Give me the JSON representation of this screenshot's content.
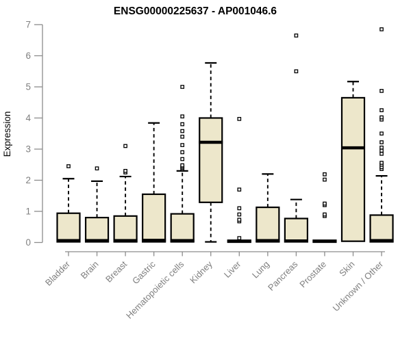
{
  "window": {
    "background": "#ffffff"
  },
  "chart_data": {
    "type": "boxplot",
    "title": "ENSG00000225637 - AP001046.6",
    "ylabel": "Expression",
    "xlabel": "",
    "ylim": [
      0,
      7
    ],
    "yticks": [
      0,
      1,
      2,
      3,
      4,
      5,
      6,
      7
    ],
    "grid": false,
    "legend": false,
    "colors": {
      "box_fill": "#ede7cb",
      "box_stroke": "#000000",
      "median": "#000000",
      "whisker": "#000000",
      "axis": "#8c8c8c",
      "tick_label": "#7f7f7f",
      "title": "#000000"
    },
    "categories": [
      "Bladder",
      "Brain",
      "Breast",
      "Gastric",
      "Hematopoietic cells",
      "Kidney",
      "Liver",
      "Lung",
      "Pancreas",
      "Prostate",
      "Skin",
      "Unknown / Other"
    ],
    "series": [
      {
        "category": "Bladder",
        "whisker_low": 0,
        "q1": 0.02,
        "median": 0.06,
        "q3": 0.94,
        "whisker_high": 2.05,
        "outliers": [
          2.45
        ]
      },
      {
        "category": "Brain",
        "whisker_low": 0,
        "q1": 0.02,
        "median": 0.06,
        "q3": 0.8,
        "whisker_high": 1.97,
        "outliers": [
          2.38
        ]
      },
      {
        "category": "Breast",
        "whisker_low": 0,
        "q1": 0.02,
        "median": 0.06,
        "q3": 0.85,
        "whisker_high": 2.12,
        "outliers": [
          2.25,
          2.3,
          3.1
        ]
      },
      {
        "category": "Gastric",
        "whisker_low": 0,
        "q1": 0.02,
        "median": 0.07,
        "q3": 1.55,
        "whisker_high": 3.84,
        "outliers": []
      },
      {
        "category": "Hematopoietic cells",
        "whisker_low": 0,
        "q1": 0.02,
        "median": 0.06,
        "q3": 0.92,
        "whisker_high": 2.3,
        "outliers": [
          2.36,
          2.4,
          2.44,
          2.48,
          2.68,
          2.9,
          3.13,
          3.4,
          3.58,
          3.8,
          4.05,
          5.0
        ]
      },
      {
        "category": "Kidney",
        "whisker_low": 0.02,
        "q1": 1.29,
        "median": 3.22,
        "q3": 4.0,
        "whisker_high": 5.77,
        "outliers": []
      },
      {
        "category": "Liver",
        "whisker_low": 0,
        "q1": 0.01,
        "median": 0.04,
        "q3": 0.07,
        "whisker_high": 0.07,
        "outliers": [
          0.14,
          0.68,
          0.73,
          0.9,
          1.1,
          1.7,
          3.97
        ]
      },
      {
        "category": "Lung",
        "whisker_low": 0,
        "q1": 0.02,
        "median": 0.06,
        "q3": 1.13,
        "whisker_high": 2.2,
        "outliers": []
      },
      {
        "category": "Pancreas",
        "whisker_low": 0,
        "q1": 0.02,
        "median": 0.05,
        "q3": 0.77,
        "whisker_high": 1.38,
        "outliers": [
          5.5,
          6.65
        ]
      },
      {
        "category": "Prostate",
        "whisker_low": 0,
        "q1": 0.01,
        "median": 0.04,
        "q3": 0.07,
        "whisker_high": 0.07,
        "outliers": [
          0.85,
          0.9,
          1.2,
          1.25,
          2.02,
          2.19
        ]
      },
      {
        "category": "Skin",
        "whisker_low": 0.02,
        "q1": 0.04,
        "median": 3.04,
        "q3": 4.65,
        "whisker_high": 5.17,
        "outliers": []
      },
      {
        "category": "Unknown / Other",
        "whisker_low": 0,
        "q1": 0.02,
        "median": 0.06,
        "q3": 0.88,
        "whisker_high": 2.14,
        "outliers": [
          2.36,
          2.42,
          2.5,
          2.56,
          2.85,
          2.95,
          3.05,
          3.22,
          3.5,
          3.95,
          4.02,
          4.25,
          4.87,
          6.85
        ]
      }
    ]
  }
}
